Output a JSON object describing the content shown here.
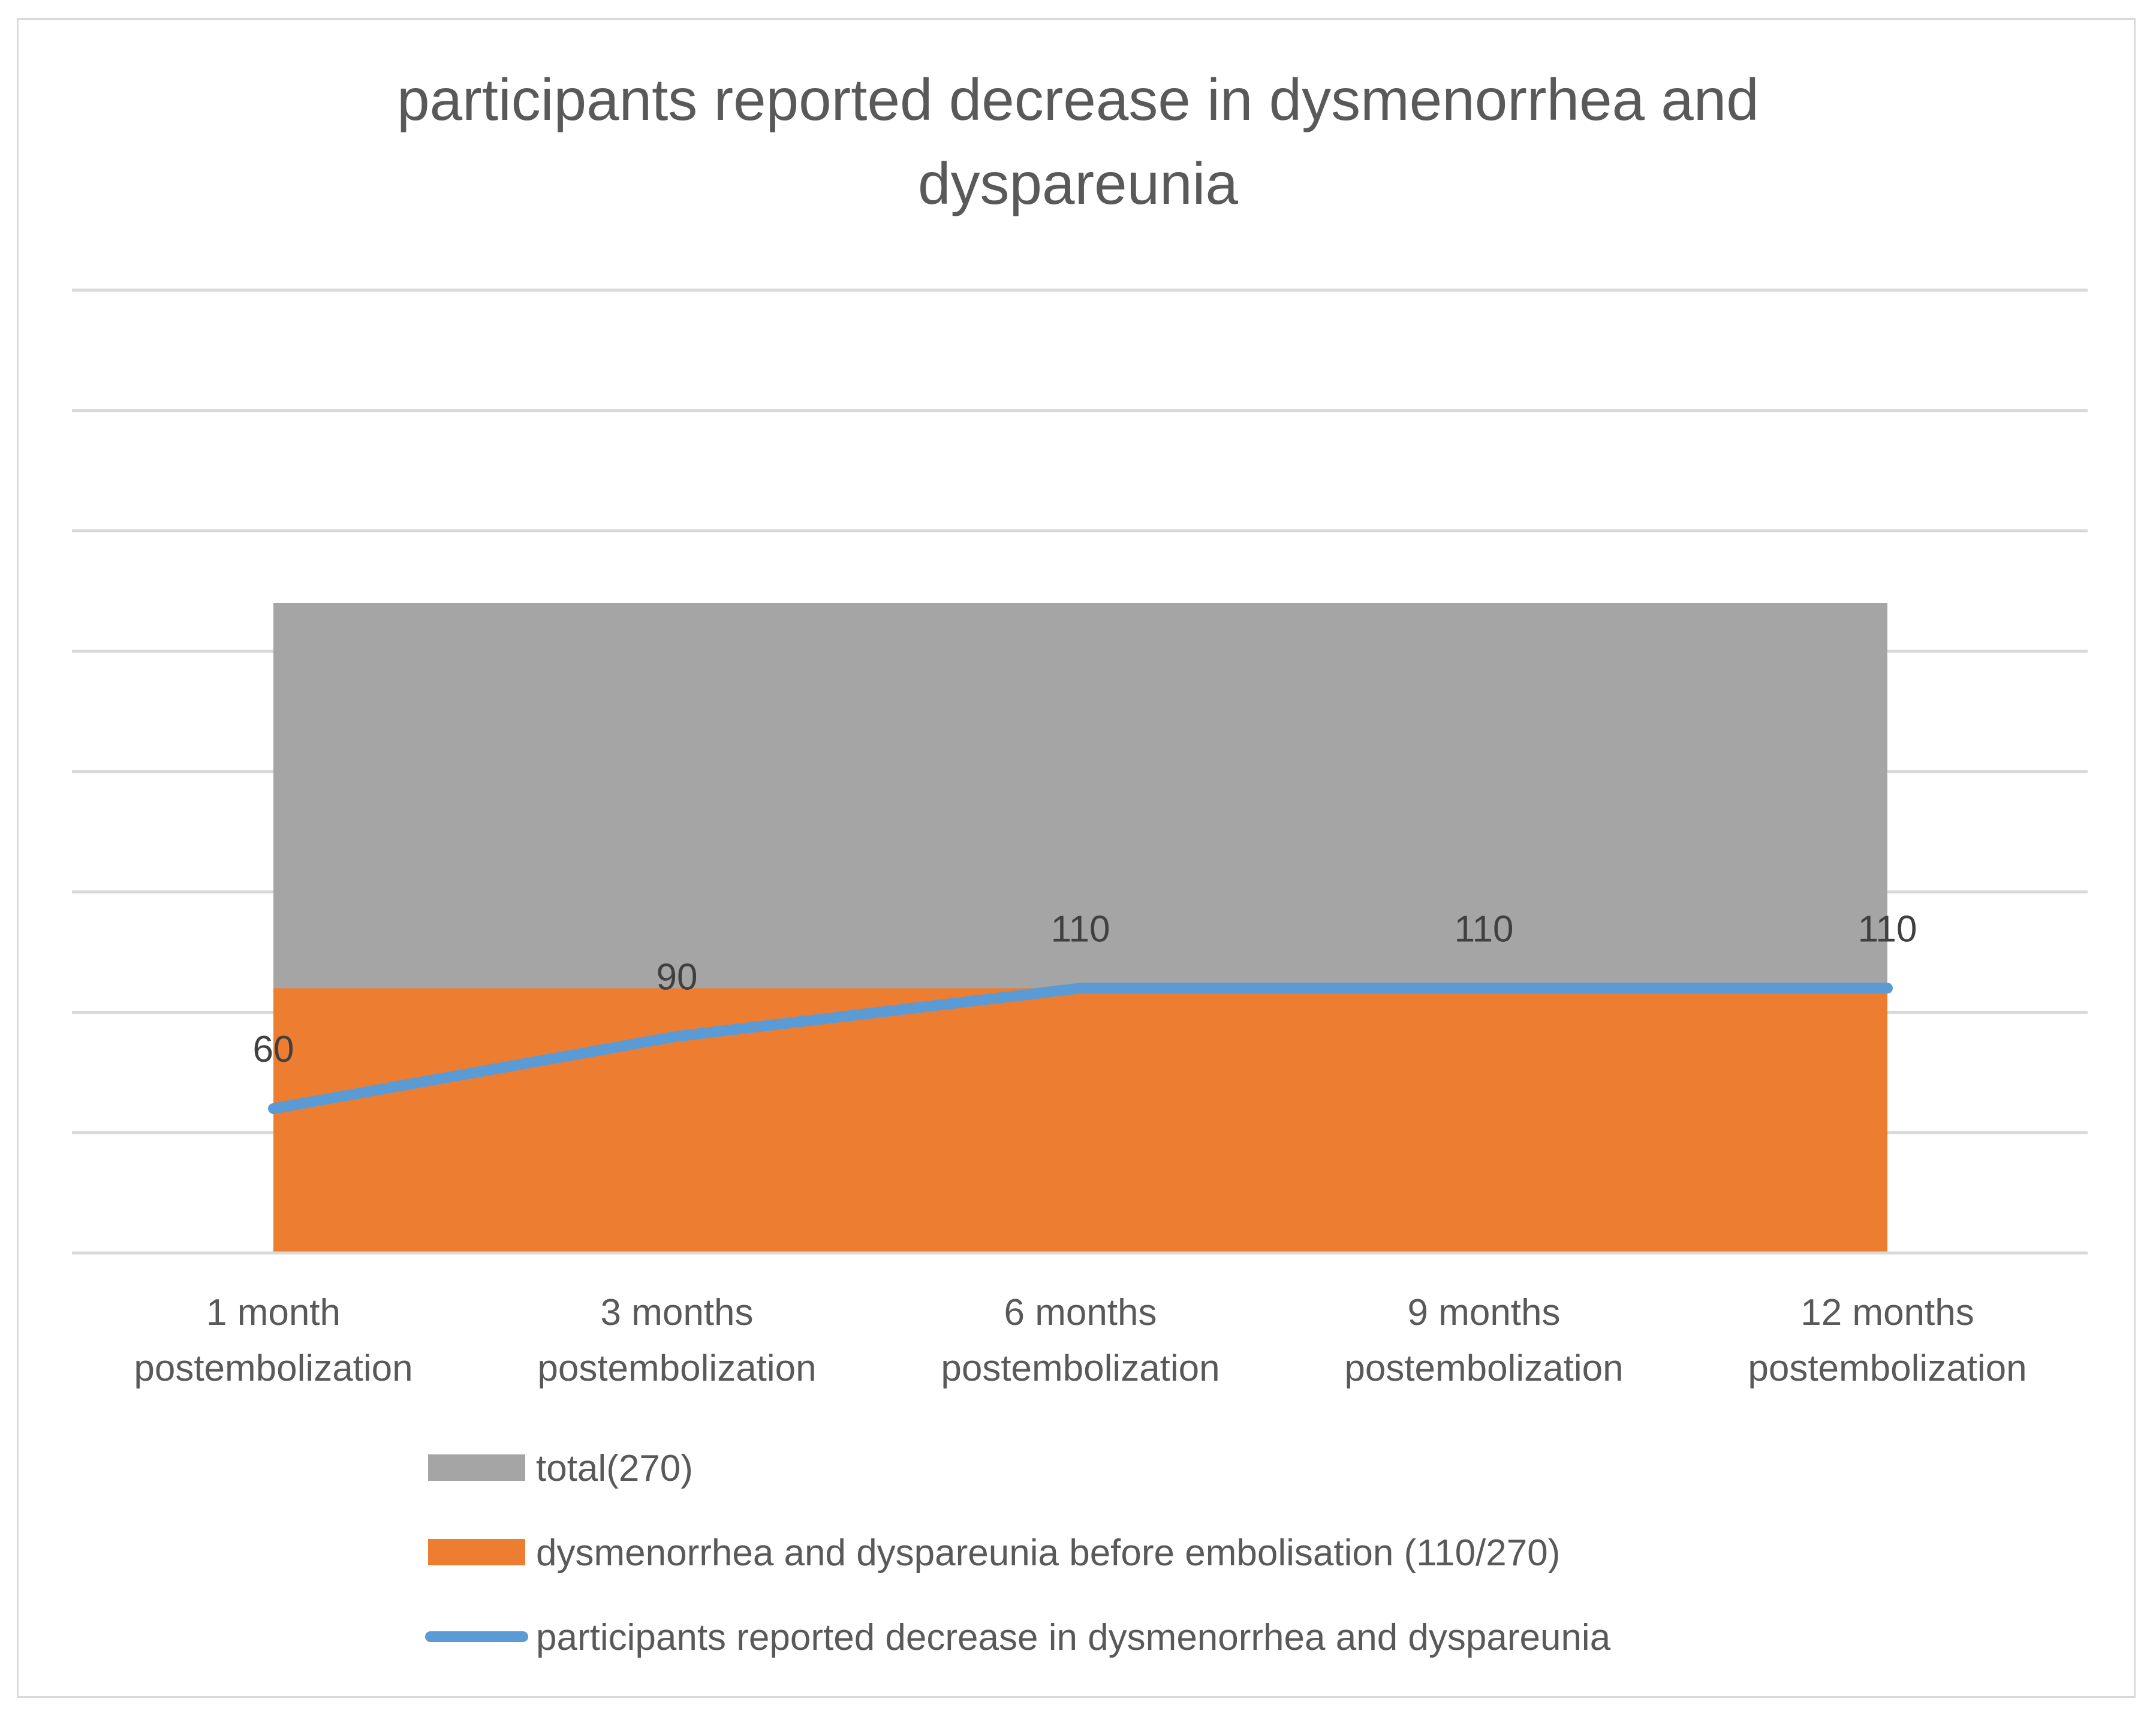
{
  "chart_data": {
    "type": "area",
    "title": "participants reported decrease in dysmenorrhea and dyspareunia",
    "title_lines": [
      "participants reported decrease in dysmenorrhea and",
      "dyspareunia"
    ],
    "categories": [
      [
        "1 month",
        "postembolization"
      ],
      [
        "3 months",
        "postembolization"
      ],
      [
        "6 months",
        "postembolization"
      ],
      [
        "9 months",
        "postembolization"
      ],
      [
        "12 months",
        "postembolization"
      ]
    ],
    "series": [
      {
        "name": "total(270)",
        "kind": "area",
        "color": "#a5a5a5",
        "values": [
          270,
          270,
          270,
          270,
          270
        ]
      },
      {
        "name": "dysmenorrhea and dyspareunia before embolisation (110/270)",
        "kind": "area",
        "color": "#ed7d31",
        "values": [
          110,
          110,
          110,
          110,
          110
        ]
      },
      {
        "name": "participants reported decrease in dysmenorrhea and dyspareunia",
        "kind": "line",
        "color": "#5b9bd5",
        "values": [
          60,
          90,
          110,
          110,
          110
        ],
        "data_labels": [
          "60",
          "90",
          "110",
          "110",
          "110"
        ]
      }
    ],
    "ylim": [
      0,
      400
    ],
    "y_gridline_step": 50,
    "xlabel": "",
    "ylabel": "",
    "grid": true,
    "legend_position": "bottom"
  }
}
